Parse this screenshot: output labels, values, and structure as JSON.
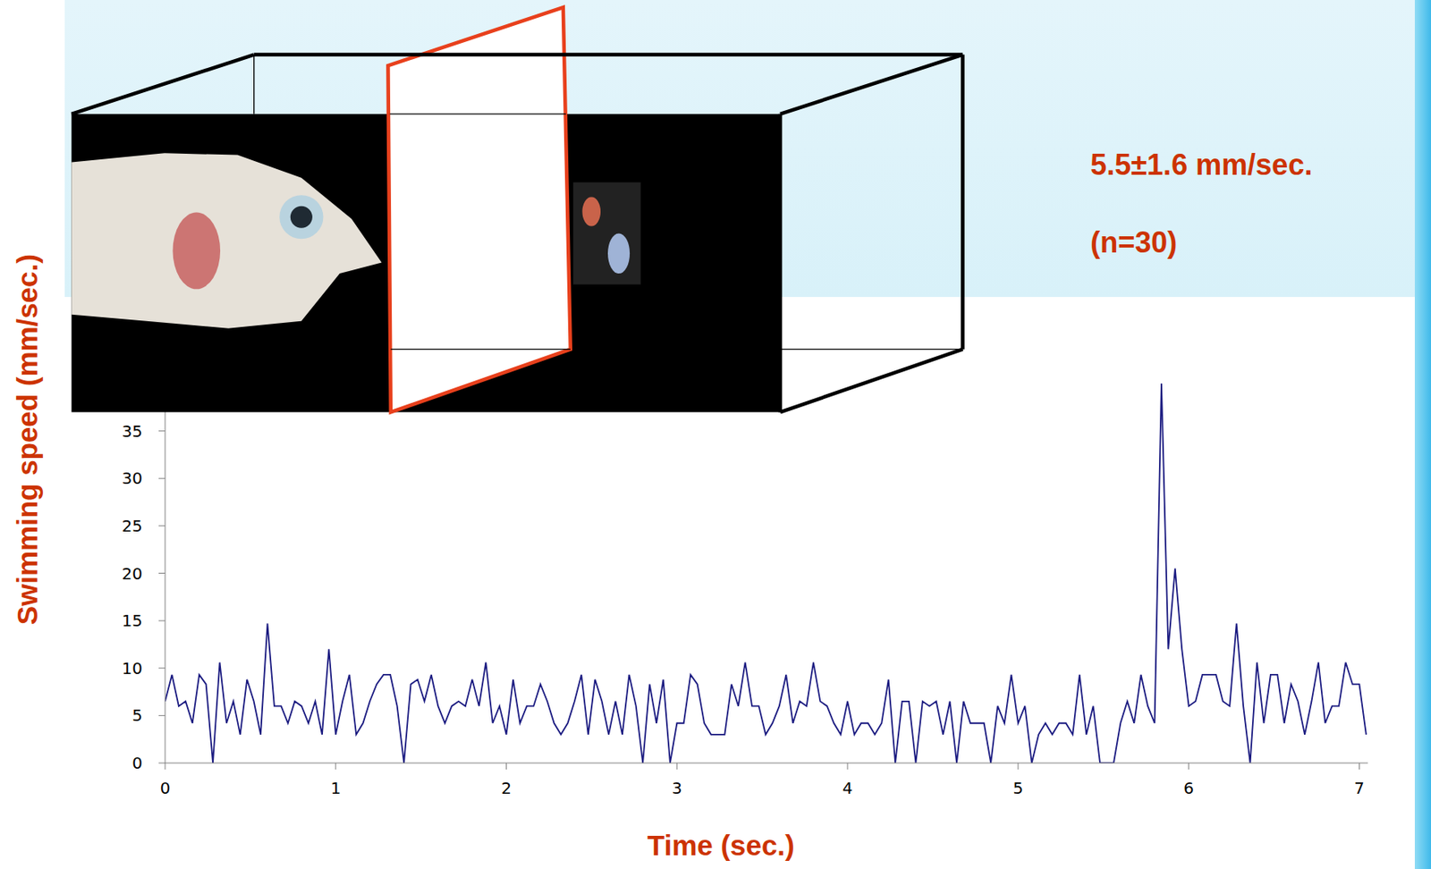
{
  "chart_data": {
    "type": "line",
    "x_label": "Time (sec.)",
    "y_label": "Swimming speed (mm/sec.)",
    "annotations": [
      "5.5±1.6 mm/sec.",
      "(n=30)"
    ],
    "color": "#1a1a80",
    "grid": false,
    "xlim": [
      0,
      7.05
    ],
    "xticks": [
      0,
      1,
      2,
      3,
      4,
      5,
      6,
      7
    ],
    "ylim": [
      0,
      40
    ],
    "yticks": [
      0,
      5,
      10,
      15,
      20,
      25,
      30,
      35
    ],
    "x": [
      0,
      0.04,
      0.08,
      0.12,
      0.16,
      0.2,
      0.24,
      0.28,
      0.32,
      0.36,
      0.4,
      0.44,
      0.48,
      0.52,
      0.56,
      0.6,
      0.64,
      0.68,
      0.72,
      0.76,
      0.8,
      0.84,
      0.88,
      0.92,
      0.96,
      1,
      1.04,
      1.08,
      1.12,
      1.16,
      1.2,
      1.24,
      1.28,
      1.32,
      1.36,
      1.4,
      1.44,
      1.48,
      1.52,
      1.56,
      1.6,
      1.64,
      1.68,
      1.72,
      1.76,
      1.8,
      1.84,
      1.88,
      1.92,
      1.96,
      2,
      2.04,
      2.08,
      2.12,
      2.16,
      2.2,
      2.24,
      2.28,
      2.32,
      2.36,
      2.4,
      2.44,
      2.48,
      2.52,
      2.56,
      2.6,
      2.64,
      2.68,
      2.72,
      2.76,
      2.8,
      2.84,
      2.88,
      2.92,
      2.96,
      3,
      3.04,
      3.08,
      3.12,
      3.16,
      3.2,
      3.24,
      3.28,
      3.32,
      3.36,
      3.4,
      3.44,
      3.48,
      3.52,
      3.56,
      3.6,
      3.64,
      3.68,
      3.72,
      3.76,
      3.8,
      3.84,
      3.88,
      3.92,
      3.96,
      4,
      4.04,
      4.08,
      4.12,
      4.16,
      4.2,
      4.24,
      4.28,
      4.32,
      4.36,
      4.4,
      4.44,
      4.48,
      4.52,
      4.56,
      4.6,
      4.64,
      4.68,
      4.72,
      4.76,
      4.8,
      4.84,
      4.88,
      4.92,
      4.96,
      5,
      5.04,
      5.08,
      5.12,
      5.16,
      5.2,
      5.24,
      5.28,
      5.32,
      5.36,
      5.4,
      5.44,
      5.48,
      5.52,
      5.56,
      5.6,
      5.64,
      5.68,
      5.72,
      5.76,
      5.8,
      5.84,
      5.88,
      5.92,
      5.96,
      6,
      6.04,
      6.08,
      6.12,
      6.16,
      6.2,
      6.24,
      6.28,
      6.32,
      6.36,
      6.4,
      6.44,
      6.48,
      6.52,
      6.56,
      6.6,
      6.64,
      6.68,
      6.72,
      6.76,
      6.8,
      6.84,
      6.88,
      6.92,
      6.96,
      7,
      7.04
    ],
    "values": [
      6.5,
      9.3,
      6,
      6.5,
      4.2,
      9.3,
      8.3,
      0,
      10.6,
      4.2,
      6.5,
      3,
      8.8,
      6.5,
      3,
      14.7,
      6,
      6,
      4.2,
      6.5,
      6,
      4.2,
      6.5,
      3,
      12,
      3,
      6.5,
      9.3,
      3,
      4.2,
      6.5,
      8.3,
      9.3,
      9.3,
      6,
      0,
      8.3,
      8.8,
      6.5,
      9.3,
      6,
      4.2,
      6,
      6.5,
      6,
      8.8,
      6,
      10.6,
      4.2,
      6,
      3,
      8.8,
      4.2,
      6,
      6,
      8.3,
      6.5,
      4.2,
      3,
      4.2,
      6.5,
      9.3,
      3,
      8.8,
      6.5,
      3,
      6.5,
      3,
      9.3,
      6,
      0,
      8.3,
      4.2,
      8.8,
      0,
      4.2,
      4.2,
      9.3,
      8.3,
      4.2,
      3,
      3,
      3,
      8.3,
      6,
      10.6,
      6,
      6,
      3,
      4.2,
      6,
      9.3,
      4.2,
      6.5,
      6,
      10.6,
      6.5,
      6,
      4.2,
      3,
      6.5,
      3,
      4.2,
      4.2,
      3,
      4.2,
      8.8,
      0,
      6.5,
      6.5,
      0,
      6.5,
      6,
      6.5,
      3,
      6.5,
      0,
      6.5,
      4.2,
      4.2,
      4.2,
      0,
      6,
      4.2,
      9.3,
      4.2,
      6,
      0,
      3,
      4.2,
      3,
      4.2,
      4.2,
      3,
      9.3,
      3,
      6,
      0,
      0,
      0,
      4.2,
      6.5,
      4.2,
      9.3,
      6,
      4.2,
      40,
      12,
      20.5,
      12,
      6,
      6.5,
      9.3,
      9.3,
      9.3,
      6.5,
      6,
      14.7,
      6,
      0,
      10.6,
      4.2,
      9.3,
      9.3,
      4.2,
      8.3,
      6.5,
      3,
      6.5,
      10.6,
      4.2,
      6,
      6,
      10.6,
      8.3,
      8.3,
      3
    ]
  }
}
